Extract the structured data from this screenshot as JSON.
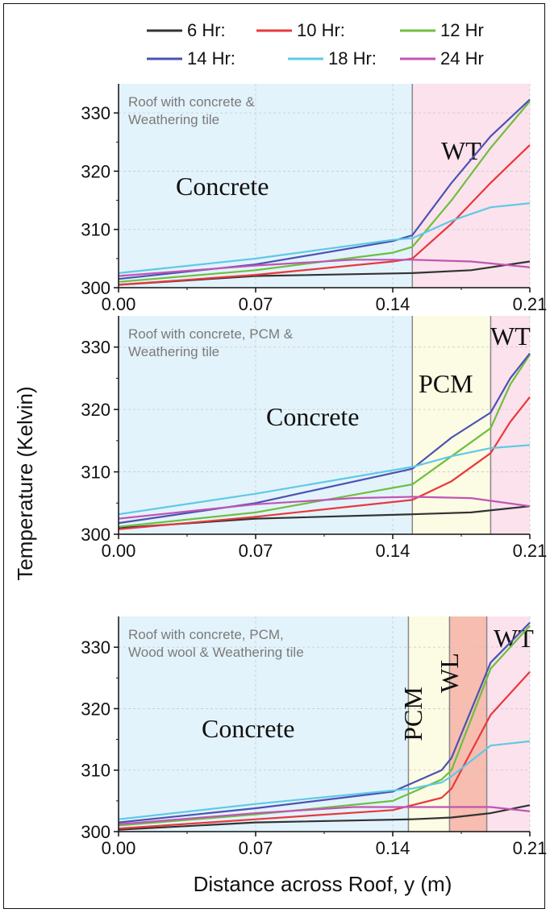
{
  "legend": [
    {
      "label": "6   Hr:",
      "color": "#333333"
    },
    {
      "label": "10 Hr:",
      "color": "#e8383d"
    },
    {
      "label": "12 Hr",
      "color": "#6dbf3e"
    },
    {
      "label": "14 Hr:",
      "color": "#4b52b3"
    },
    {
      "label": "18 Hr:",
      "color": "#5fc9e6"
    },
    {
      "label": "24 Hr",
      "color": "#c154b3"
    }
  ],
  "ylabel": "Temperature (Kelvin)",
  "xlabel": "Distance across Roof, y (m)",
  "chart_data": [
    {
      "type": "line",
      "subtitle": [
        "Roof with concrete &",
        "Weathering tile"
      ],
      "xlim": [
        0,
        0.21
      ],
      "ylim": [
        300,
        335
      ],
      "x_ticks": [
        "0.00",
        "0.07",
        "0.14",
        "0.21"
      ],
      "y_ticks": [
        "300",
        "310",
        "320",
        "330"
      ],
      "regions": [
        {
          "label": "Concrete",
          "x": [
            0,
            0.15
          ],
          "color": "#e3f3fb"
        },
        {
          "label": "WT",
          "x": [
            0.15,
            0.21
          ],
          "color": "#fbe2ec"
        }
      ],
      "series": [
        {
          "name": "6   Hr:",
          "color": "#333333",
          "points": [
            [
              0,
              300.5
            ],
            [
              0.07,
              302
            ],
            [
              0.15,
              302.5
            ],
            [
              0.18,
              303
            ],
            [
              0.21,
              304.5
            ]
          ]
        },
        {
          "name": "10 Hr:",
          "color": "#e8383d",
          "points": [
            [
              0,
              300.5
            ],
            [
              0.07,
              302.2
            ],
            [
              0.14,
              304.5
            ],
            [
              0.15,
              305
            ],
            [
              0.17,
              311
            ],
            [
              0.19,
              318
            ],
            [
              0.21,
              324.5
            ]
          ]
        },
        {
          "name": "12 Hr",
          "color": "#6dbf3e",
          "points": [
            [
              0,
              301
            ],
            [
              0.07,
              303
            ],
            [
              0.14,
              306
            ],
            [
              0.15,
              307
            ],
            [
              0.17,
              315
            ],
            [
              0.19,
              324
            ],
            [
              0.21,
              332
            ]
          ]
        },
        {
          "name": "14 Hr:",
          "color": "#4b52b3",
          "points": [
            [
              0,
              301.5
            ],
            [
              0.07,
              304
            ],
            [
              0.14,
              308
            ],
            [
              0.15,
              309
            ],
            [
              0.17,
              318
            ],
            [
              0.19,
              326
            ],
            [
              0.21,
              332.3
            ]
          ]
        },
        {
          "name": "18 Hr:",
          "color": "#5fc9e6",
          "points": [
            [
              0,
              302.5
            ],
            [
              0.07,
              305
            ],
            [
              0.14,
              308.2
            ],
            [
              0.15,
              308.5
            ],
            [
              0.17,
              311.5
            ],
            [
              0.19,
              313.8
            ],
            [
              0.21,
              314.5
            ]
          ]
        },
        {
          "name": "24 Hr",
          "color": "#c154b3",
          "points": [
            [
              0,
              302
            ],
            [
              0.07,
              303.8
            ],
            [
              0.12,
              304.8
            ],
            [
              0.15,
              304.8
            ],
            [
              0.18,
              304.5
            ],
            [
              0.21,
              303.5
            ]
          ]
        }
      ]
    },
    {
      "type": "line",
      "subtitle": [
        "Roof with concrete, PCM &",
        "Weathering tile"
      ],
      "xlim": [
        0,
        0.21
      ],
      "ylim": [
        300,
        335
      ],
      "x_ticks": [
        "0.00",
        "0.07",
        "0.14",
        "0.21"
      ],
      "y_ticks": [
        "300",
        "310",
        "320",
        "330"
      ],
      "regions": [
        {
          "label": "Concrete",
          "x": [
            0,
            0.15
          ],
          "color": "#e3f3fb"
        },
        {
          "label": "PCM",
          "x": [
            0.15,
            0.19
          ],
          "color": "#fcfbe3"
        },
        {
          "label": "WT",
          "x": [
            0.19,
            0.21
          ],
          "color": "#fbe2ec"
        }
      ],
      "series": [
        {
          "name": "6   Hr:",
          "color": "#333333",
          "points": [
            [
              0,
              301
            ],
            [
              0.07,
              302.5
            ],
            [
              0.15,
              303.2
            ],
            [
              0.18,
              303.5
            ],
            [
              0.21,
              304.5
            ]
          ]
        },
        {
          "name": "10 Hr:",
          "color": "#e8383d",
          "points": [
            [
              0,
              300.8
            ],
            [
              0.07,
              302.8
            ],
            [
              0.15,
              305.5
            ],
            [
              0.17,
              308.5
            ],
            [
              0.19,
              313
            ],
            [
              0.2,
              318
            ],
            [
              0.21,
              322
            ]
          ]
        },
        {
          "name": "12 Hr",
          "color": "#6dbf3e",
          "points": [
            [
              0,
              301.2
            ],
            [
              0.07,
              303.5
            ],
            [
              0.15,
              308
            ],
            [
              0.17,
              312.5
            ],
            [
              0.19,
              317
            ],
            [
              0.2,
              324
            ],
            [
              0.21,
              328.8
            ]
          ]
        },
        {
          "name": "14 Hr:",
          "color": "#4b52b3",
          "points": [
            [
              0,
              301.8
            ],
            [
              0.07,
              305
            ],
            [
              0.15,
              310.5
            ],
            [
              0.17,
              315.5
            ],
            [
              0.19,
              319.5
            ],
            [
              0.2,
              325
            ],
            [
              0.21,
              329
            ]
          ]
        },
        {
          "name": "18 Hr:",
          "color": "#5fc9e6",
          "points": [
            [
              0,
              303.2
            ],
            [
              0.07,
              306.5
            ],
            [
              0.15,
              310.8
            ],
            [
              0.17,
              312.5
            ],
            [
              0.19,
              313.8
            ],
            [
              0.21,
              314.3
            ]
          ]
        },
        {
          "name": "24 Hr",
          "color": "#c154b3",
          "points": [
            [
              0,
              302.5
            ],
            [
              0.07,
              304.8
            ],
            [
              0.12,
              305.8
            ],
            [
              0.15,
              306
            ],
            [
              0.18,
              305.8
            ],
            [
              0.21,
              304.5
            ]
          ]
        }
      ]
    },
    {
      "type": "line",
      "subtitle": [
        "Roof with concrete, PCM,",
        "Wood wool & Weathering tile"
      ],
      "xlim": [
        0,
        0.21
      ],
      "ylim": [
        300,
        335
      ],
      "x_ticks": [
        "0.00",
        "0.07",
        "0.14",
        "0.21"
      ],
      "y_ticks": [
        "300",
        "310",
        "320",
        "330"
      ],
      "regions": [
        {
          "label": "Concrete",
          "x": [
            0,
            0.148
          ],
          "color": "#e3f3fb"
        },
        {
          "label": "PCM",
          "x": [
            0.148,
            0.169
          ],
          "color": "#fcfbe3"
        },
        {
          "label": "WL",
          "x": [
            0.169,
            0.188
          ],
          "color": "#f7bdb0"
        },
        {
          "label": "WT",
          "x": [
            0.188,
            0.21
          ],
          "color": "#fbe2ec"
        }
      ],
      "series": [
        {
          "name": "6   Hr:",
          "color": "#333333",
          "points": [
            [
              0,
              300.3
            ],
            [
              0.07,
              301.5
            ],
            [
              0.15,
              302
            ],
            [
              0.17,
              302.3
            ],
            [
              0.19,
              303
            ],
            [
              0.21,
              304.3
            ]
          ]
        },
        {
          "name": "10 Hr:",
          "color": "#e8383d",
          "points": [
            [
              0,
              300.5
            ],
            [
              0.07,
              302
            ],
            [
              0.14,
              303.5
            ],
            [
              0.165,
              305.5
            ],
            [
              0.17,
              307
            ],
            [
              0.19,
              319
            ],
            [
              0.21,
              326
            ]
          ]
        },
        {
          "name": "12 Hr",
          "color": "#6dbf3e",
          "points": [
            [
              0,
              301
            ],
            [
              0.07,
              302.8
            ],
            [
              0.14,
              305
            ],
            [
              0.165,
              308.5
            ],
            [
              0.17,
              310
            ],
            [
              0.19,
              326.5
            ],
            [
              0.21,
              333.5
            ]
          ]
        },
        {
          "name": "14 Hr:",
          "color": "#4b52b3",
          "points": [
            [
              0,
              301.5
            ],
            [
              0.07,
              303.8
            ],
            [
              0.14,
              306.5
            ],
            [
              0.165,
              310
            ],
            [
              0.17,
              312
            ],
            [
              0.19,
              327.5
            ],
            [
              0.21,
              334
            ]
          ]
        },
        {
          "name": "18 Hr:",
          "color": "#5fc9e6",
          "points": [
            [
              0,
              302
            ],
            [
              0.07,
              304.5
            ],
            [
              0.15,
              307
            ],
            [
              0.165,
              308
            ],
            [
              0.17,
              309
            ],
            [
              0.19,
              314
            ],
            [
              0.21,
              314.7
            ]
          ]
        },
        {
          "name": "24 Hr",
          "color": "#c154b3",
          "points": [
            [
              0,
              301.2
            ],
            [
              0.07,
              303
            ],
            [
              0.12,
              304
            ],
            [
              0.17,
              304
            ],
            [
              0.19,
              304
            ],
            [
              0.21,
              303.3
            ]
          ]
        }
      ]
    }
  ]
}
